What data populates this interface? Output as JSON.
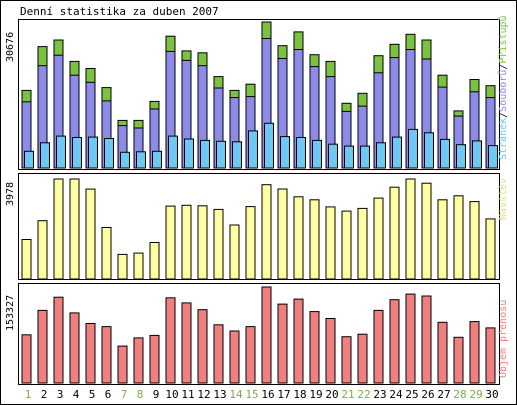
{
  "title": "Denní statistika za duben 2007",
  "colors": {
    "hits": "#7bc142",
    "files": "#8c8ce8",
    "pages": "#6ec8f6",
    "visits": "#ffffa0",
    "kbytes": "#f08080",
    "weekday_label": "#000000",
    "weekend_label": "#7ab040"
  },
  "chart_data": [
    {
      "type": "bar",
      "name": "requests",
      "ymax_label": "30676",
      "ylim": [
        0,
        30676
      ],
      "legend": {
        "pages": "Stránek",
        "sep1": "/",
        "files": "Souborů",
        "sep2": "/",
        "hits": "Přístupů"
      },
      "categories": [
        "1",
        "2",
        "3",
        "4",
        "5",
        "6",
        "7",
        "8",
        "9",
        "10",
        "11",
        "12",
        "13",
        "14",
        "15",
        "16",
        "17",
        "18",
        "19",
        "20",
        "21",
        "22",
        "23",
        "24",
        "25",
        "26",
        "27",
        "28",
        "29",
        "30"
      ],
      "series": [
        {
          "name": "Přístupů",
          "color": "#7bc142",
          "values": [
            16300,
            25500,
            26900,
            22400,
            20900,
            16900,
            10000,
            10000,
            14000,
            27700,
            24600,
            24200,
            19200,
            16300,
            17600,
            30676,
            25700,
            28600,
            23800,
            22400,
            13600,
            15700,
            23600,
            26000,
            28100,
            26900,
            19500,
            12000,
            18600,
            17300
          ]
        },
        {
          "name": "Souborů",
          "color": "#8c8ce8",
          "values": [
            13900,
            21500,
            23700,
            19500,
            18000,
            14100,
            8900,
            8400,
            12400,
            24500,
            22600,
            21500,
            16800,
            14800,
            15000,
            27200,
            23000,
            24900,
            21300,
            19200,
            11900,
            13000,
            20000,
            23200,
            24900,
            22900,
            17000,
            10900,
            16000,
            14800
          ]
        },
        {
          "name": "Stránek",
          "color": "#6ec8f6",
          "values": [
            3500,
            5300,
            6700,
            6400,
            6500,
            6200,
            3300,
            3400,
            3500,
            6700,
            6100,
            5800,
            5600,
            5500,
            7800,
            9400,
            6600,
            6400,
            5800,
            5000,
            4600,
            4600,
            5300,
            6500,
            8100,
            7400,
            6000,
            4900,
            5700,
            4700
          ]
        }
      ]
    },
    {
      "type": "bar",
      "name": "visits",
      "ymax_label": "3978",
      "ylim": [
        0,
        3978
      ],
      "legend": "Návštěv",
      "categories": [
        "1",
        "2",
        "3",
        "4",
        "5",
        "6",
        "7",
        "8",
        "9",
        "10",
        "11",
        "12",
        "13",
        "14",
        "15",
        "16",
        "17",
        "18",
        "19",
        "20",
        "21",
        "22",
        "23",
        "24",
        "25",
        "26",
        "27",
        "28",
        "29",
        "30"
      ],
      "series": [
        {
          "name": "Návštěv",
          "color": "#ffffa0",
          "values": [
            1570,
            2320,
            3978,
            3978,
            3578,
            2050,
            980,
            1030,
            1450,
            2900,
            2930,
            2910,
            2770,
            2150,
            2880,
            3750,
            3580,
            3270,
            3150,
            2870,
            2700,
            2810,
            3220,
            3650,
            3978,
            3810,
            3150,
            3310,
            3080,
            2390
          ]
        }
      ]
    },
    {
      "type": "bar",
      "name": "kbytes",
      "ymax_label": "153327",
      "ylim": [
        0,
        153327
      ],
      "legend": "Objem přenosu",
      "categories": [
        "1",
        "2",
        "3",
        "4",
        "5",
        "6",
        "7",
        "8",
        "9",
        "10",
        "11",
        "12",
        "13",
        "14",
        "15",
        "16",
        "17",
        "18",
        "19",
        "20",
        "21",
        "22",
        "23",
        "24",
        "25",
        "26",
        "27",
        "28",
        "29",
        "30"
      ],
      "series": [
        {
          "name": "Objem přenosu",
          "color": "#f08080",
          "values": [
            77000,
            116000,
            137000,
            112000,
            95000,
            90000,
            59000,
            72000,
            76000,
            136000,
            128000,
            117000,
            93000,
            83000,
            90000,
            153327,
            126000,
            134000,
            114000,
            103000,
            74000,
            78000,
            116000,
            133000,
            142000,
            139000,
            97000,
            73000,
            98000,
            88000
          ]
        }
      ]
    }
  ],
  "days": [
    {
      "label": "1",
      "weekend": true
    },
    {
      "label": "2",
      "weekend": false
    },
    {
      "label": "3",
      "weekend": false
    },
    {
      "label": "4",
      "weekend": false
    },
    {
      "label": "5",
      "weekend": false
    },
    {
      "label": "6",
      "weekend": false
    },
    {
      "label": "7",
      "weekend": true
    },
    {
      "label": "8",
      "weekend": true
    },
    {
      "label": "9",
      "weekend": false
    },
    {
      "label": "10",
      "weekend": false
    },
    {
      "label": "11",
      "weekend": false
    },
    {
      "label": "12",
      "weekend": false
    },
    {
      "label": "13",
      "weekend": false
    },
    {
      "label": "14",
      "weekend": true
    },
    {
      "label": "15",
      "weekend": true
    },
    {
      "label": "16",
      "weekend": false
    },
    {
      "label": "17",
      "weekend": false
    },
    {
      "label": "18",
      "weekend": false
    },
    {
      "label": "19",
      "weekend": false
    },
    {
      "label": "20",
      "weekend": false
    },
    {
      "label": "21",
      "weekend": true
    },
    {
      "label": "22",
      "weekend": true
    },
    {
      "label": "23",
      "weekend": false
    },
    {
      "label": "24",
      "weekend": false
    },
    {
      "label": "25",
      "weekend": false
    },
    {
      "label": "26",
      "weekend": false
    },
    {
      "label": "27",
      "weekend": false
    },
    {
      "label": "28",
      "weekend": true
    },
    {
      "label": "29",
      "weekend": true
    },
    {
      "label": "30",
      "weekend": false
    }
  ]
}
